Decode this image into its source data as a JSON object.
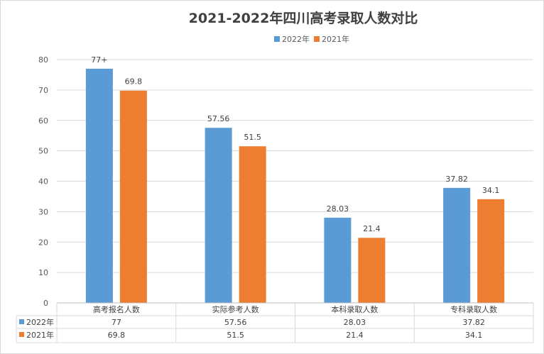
{
  "chart_data": {
    "type": "bar",
    "title": "2021-2022年四川高考录取人数对比",
    "categories": [
      "高考报名人数",
      "实际参考人数",
      "本科录取人数",
      "专科录取人数"
    ],
    "series": [
      {
        "name": "2022年",
        "color": "#5b9bd5",
        "values": [
          77,
          57.56,
          28.03,
          37.82
        ],
        "labels": [
          "77+",
          "57.56",
          "28.03",
          "37.82"
        ],
        "table_values": [
          "77",
          "57.56",
          "28.03",
          "37.82"
        ]
      },
      {
        "name": "2021年",
        "color": "#ed7d31",
        "values": [
          69.8,
          51.5,
          21.4,
          34.1
        ],
        "labels": [
          "69.8",
          "51.5",
          "21.4",
          "34.1"
        ],
        "table_values": [
          "69.8",
          "51.5",
          "21.4",
          "34.1"
        ]
      }
    ],
    "ylim": [
      0,
      80
    ],
    "yticks": [
      0,
      10,
      20,
      30,
      40,
      50,
      60,
      70,
      80
    ],
    "grid": true,
    "legend": "top-center",
    "data_table": true
  }
}
